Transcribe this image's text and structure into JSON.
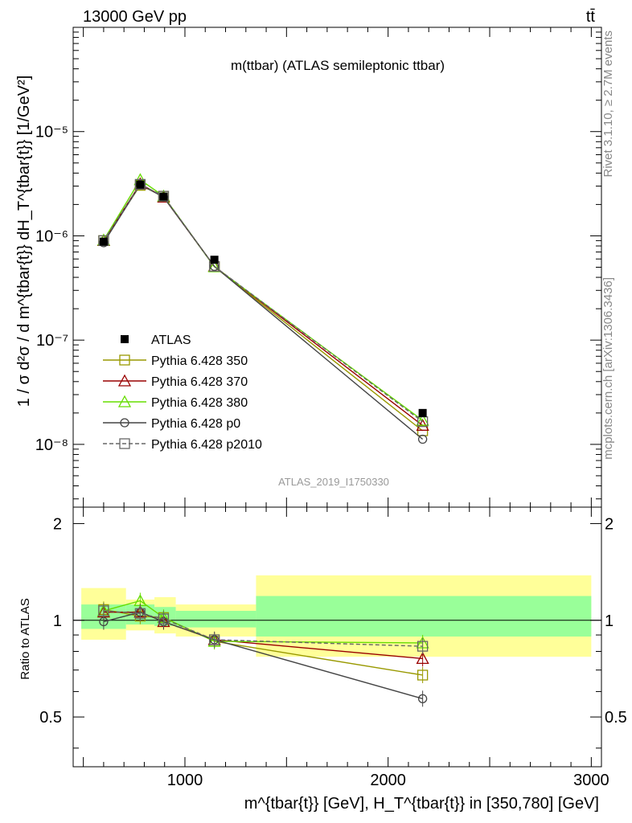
{
  "header": {
    "energy_label": "13000 GeV pp",
    "process_label": "tt̄"
  },
  "side_labels": {
    "rivet": "Rivet 3.1.10, ≥ 2.7M events",
    "mcplots": "mcplots.cern.ch [arXiv:1306.3436]"
  },
  "chart_data": [
    {
      "type": "line",
      "title": "m(ttbar) (ATLAS semileptonic ttbar)",
      "analysis_id": "ATLAS_2019_I1750330",
      "ylabel": "1 / σ d²σ / d m^{tbar{t}} dH_T^{tbar{t}} [1/GeV²]",
      "xlim": [
        450,
        3050
      ],
      "ylim": [
        2.5e-09,
        0.0001
      ],
      "yscale": "log",
      "y_tick_labels": [
        "10⁻⁸",
        "10⁻⁷",
        "10⁻⁶",
        "10⁻⁵"
      ],
      "legend_position": "lower-left",
      "x": [
        600,
        780,
        895,
        1145,
        2170
      ],
      "series": [
        {
          "name": "ATLAS",
          "color": "#000000",
          "marker": "filled-square",
          "values": [
            8.8e-07,
            3.1e-06,
            2.38e-06,
            5.9e-07,
            2e-08
          ]
        },
        {
          "name": "Pythia 6.428 350",
          "color": "#999900",
          "marker": "open-square",
          "values": [
            9e-07,
            3.05e-06,
            2.4e-06,
            5.05e-07,
            1.35e-08
          ]
        },
        {
          "name": "Pythia 6.428 370",
          "color": "#990000",
          "marker": "open-triangle",
          "values": [
            9e-07,
            3.15e-06,
            2.35e-06,
            5.1e-07,
            1.52e-08
          ]
        },
        {
          "name": "Pythia 6.428 380",
          "color": "#66dd00",
          "marker": "open-triangle",
          "values": [
            9.1e-07,
            3.45e-06,
            2.4e-06,
            5.05e-07,
            1.7e-08
          ]
        },
        {
          "name": "Pythia 6.428 p0",
          "color": "#444444",
          "marker": "open-circle",
          "values": [
            8.6e-07,
            3.1e-06,
            2.35e-06,
            5.1e-07,
            1.12e-08
          ]
        },
        {
          "name": "Pythia 6.428 p2010",
          "color": "#666666",
          "marker": "open-square-dashed",
          "values": [
            9e-07,
            3.12e-06,
            2.4e-06,
            5.1e-07,
            1.65e-08
          ]
        }
      ]
    },
    {
      "type": "line",
      "xlabel": "m^{tbar{t}} [GeV], H_T^{tbar{t}} in [350,780] [GeV]",
      "ylabel": "Ratio to ATLAS",
      "xlim": [
        450,
        3050
      ],
      "ylim": [
        0.35,
        2.25
      ],
      "yscale": "log",
      "x_tick_labels": [
        "1000",
        "2000",
        "3000"
      ],
      "y_tick_labels": [
        "0.5",
        "1",
        "2"
      ],
      "uncertainty_bands": {
        "bin_edges": [
          490,
          710,
          850,
          955,
          1350,
          3000
        ],
        "inner_band": {
          "color": "#99ff99",
          "lower": [
            0.94,
            0.97,
            0.96,
            0.95,
            0.89
          ],
          "upper": [
            1.12,
            1.12,
            1.1,
            1.07,
            1.19
          ]
        },
        "outer_band": {
          "color": "#ffff99",
          "lower": [
            0.87,
            0.93,
            0.91,
            0.89,
            0.77
          ],
          "upper": [
            1.26,
            1.16,
            1.18,
            1.12,
            1.38
          ]
        }
      },
      "x": [
        600,
        780,
        895,
        1145,
        2170
      ],
      "series": [
        {
          "name": "Pythia 6.428 350",
          "values": [
            1.08,
            1.03,
            1.02,
            0.86,
            0.675
          ]
        },
        {
          "name": "Pythia 6.428 370",
          "values": [
            1.06,
            1.06,
            0.99,
            0.87,
            0.76
          ]
        },
        {
          "name": "Pythia 6.428 380",
          "values": [
            1.07,
            1.15,
            1.02,
            0.86,
            0.85
          ]
        },
        {
          "name": "Pythia 6.428 p0",
          "values": [
            0.99,
            1.06,
            0.99,
            0.87,
            0.57
          ]
        },
        {
          "name": "Pythia 6.428 p2010",
          "values": [
            1.07,
            1.05,
            1.01,
            0.87,
            0.83
          ]
        }
      ]
    }
  ]
}
